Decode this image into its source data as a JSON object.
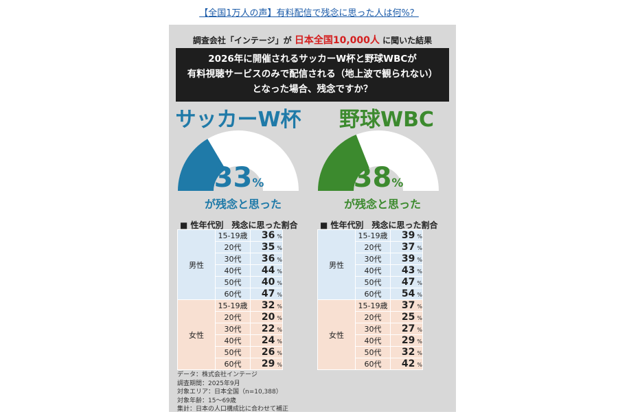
{
  "headline": "【全国1万人の声】有料配信で残念に思った人は何%？",
  "survey_header": {
    "prefix": "調査会社「インテージ」が",
    "highlight": "日本全国10,000人",
    "suffix": "に聞いた結果"
  },
  "question_lines": [
    "2026年に開催されるサッカーW杯と野球WBCが",
    "有料視聴サービスのみで配信される（地上波で観られない）",
    "となった場合、残念ですか？"
  ],
  "colors": {
    "soccer": "#1f7aa8",
    "baseball": "#3c8a2e",
    "gauge_rest": "#ffffff",
    "male_bg": "#dbe9f5",
    "female_bg": "#f8e0d2"
  },
  "chart_data": [
    {
      "type": "gauge",
      "title": "サッカーW杯",
      "value": 33,
      "unit": "%",
      "caption": "が残念と思った",
      "color": "#1f7aa8"
    },
    {
      "type": "gauge",
      "title": "野球WBC",
      "value": 38,
      "unit": "%",
      "caption": "が残念と思った",
      "color": "#3c8a2e"
    },
    {
      "type": "table",
      "title": "■ 性年代別　残念に思った割合",
      "sport": "サッカーW杯",
      "unit": "%",
      "groups": [
        {
          "name": "男性",
          "rows": [
            {
              "age": "15-19歳",
              "value": 36
            },
            {
              "age": "20代",
              "value": 35
            },
            {
              "age": "30代",
              "value": 36
            },
            {
              "age": "40代",
              "value": 44
            },
            {
              "age": "50代",
              "value": 40
            },
            {
              "age": "60代",
              "value": 47
            }
          ]
        },
        {
          "name": "女性",
          "rows": [
            {
              "age": "15-19歳",
              "value": 32
            },
            {
              "age": "20代",
              "value": 20
            },
            {
              "age": "30代",
              "value": 22
            },
            {
              "age": "40代",
              "value": 24
            },
            {
              "age": "50代",
              "value": 26
            },
            {
              "age": "60代",
              "value": 29
            }
          ]
        }
      ]
    },
    {
      "type": "table",
      "title": "■ 性年代別　残念に思った割合",
      "sport": "野球WBC",
      "unit": "%",
      "groups": [
        {
          "name": "男性",
          "rows": [
            {
              "age": "15-19歳",
              "value": 39
            },
            {
              "age": "20代",
              "value": 37
            },
            {
              "age": "30代",
              "value": 39
            },
            {
              "age": "40代",
              "value": 43
            },
            {
              "age": "50代",
              "value": 47
            },
            {
              "age": "60代",
              "value": 54
            }
          ]
        },
        {
          "name": "女性",
          "rows": [
            {
              "age": "15-19歳",
              "value": 37
            },
            {
              "age": "20代",
              "value": 25
            },
            {
              "age": "30代",
              "value": 27
            },
            {
              "age": "40代",
              "value": 29
            },
            {
              "age": "50代",
              "value": 32
            },
            {
              "age": "60代",
              "value": 42
            }
          ]
        }
      ]
    }
  ],
  "notes": [
    "データ：株式会社インテージ",
    "調査期間：2025年9月",
    "対象エリア：日本全国（n=10,388）",
    "対象年齢：15〜69歳",
    "集計：日本の人口構成比に合わせて補正"
  ]
}
